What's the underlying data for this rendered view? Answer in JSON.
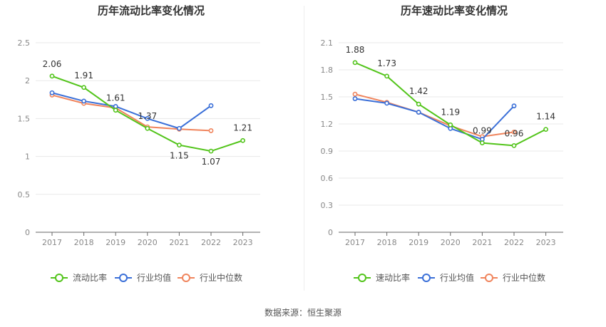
{
  "colors": {
    "company": "#52c41a",
    "avg": "#3a6fd8",
    "median": "#f0845c",
    "grid": "#e8e8e8",
    "axis": "#666666"
  },
  "legend": {
    "avg": "行业均值",
    "median": "行业中位数"
  },
  "source_text": "数据来源：恒生聚源",
  "chart_data": [
    {
      "type": "line",
      "title": "历年流动比率变化情况",
      "categories": [
        "2017",
        "2018",
        "2019",
        "2020",
        "2021",
        "2022",
        "2023"
      ],
      "ylim": [
        0,
        2.5
      ],
      "yticks": [
        "0",
        "0.5",
        "1",
        "1.5",
        "2",
        "2.5"
      ],
      "ytick_values": [
        0,
        0.5,
        1,
        1.5,
        2,
        2.5
      ],
      "grid": true,
      "legend_position": "bottom",
      "series": [
        {
          "key": "company",
          "name": "流动比率",
          "values": [
            2.06,
            1.91,
            1.61,
            1.37,
            1.15,
            1.07,
            1.21
          ],
          "labels": [
            "2.06",
            "1.91",
            "1.61",
            "1.37",
            "1.15",
            "1.07",
            "1.21"
          ]
        },
        {
          "key": "avg",
          "name": "行业均值",
          "values": [
            1.84,
            1.73,
            1.66,
            1.5,
            1.37,
            1.67,
            null
          ]
        },
        {
          "key": "median",
          "name": "行业中位数",
          "values": [
            1.81,
            1.7,
            1.64,
            1.39,
            1.36,
            1.34,
            null
          ]
        }
      ]
    },
    {
      "type": "line",
      "title": "历年速动比率变化情况",
      "categories": [
        "2017",
        "2018",
        "2019",
        "2020",
        "2021",
        "2022",
        "2023"
      ],
      "ylim": [
        0,
        2.1
      ],
      "yticks": [
        "0",
        "0.3",
        "0.6",
        "0.9",
        "1.2",
        "1.5",
        "1.8",
        "2.1"
      ],
      "ytick_values": [
        0,
        0.3,
        0.6,
        0.9,
        1.2,
        1.5,
        1.8,
        2.1
      ],
      "grid": true,
      "legend_position": "bottom",
      "series": [
        {
          "key": "company",
          "name": "速动比率",
          "values": [
            1.88,
            1.73,
            1.42,
            1.19,
            0.99,
            0.96,
            1.14
          ],
          "labels": [
            "1.88",
            "1.73",
            "1.42",
            "1.19",
            "0.99",
            "0.96",
            "1.14"
          ]
        },
        {
          "key": "avg",
          "name": "行业均值",
          "values": [
            1.48,
            1.43,
            1.33,
            1.15,
            1.03,
            1.4,
            null
          ]
        },
        {
          "key": "median",
          "name": "行业中位数",
          "values": [
            1.53,
            1.44,
            1.33,
            1.18,
            1.06,
            1.11,
            null
          ]
        }
      ]
    }
  ]
}
